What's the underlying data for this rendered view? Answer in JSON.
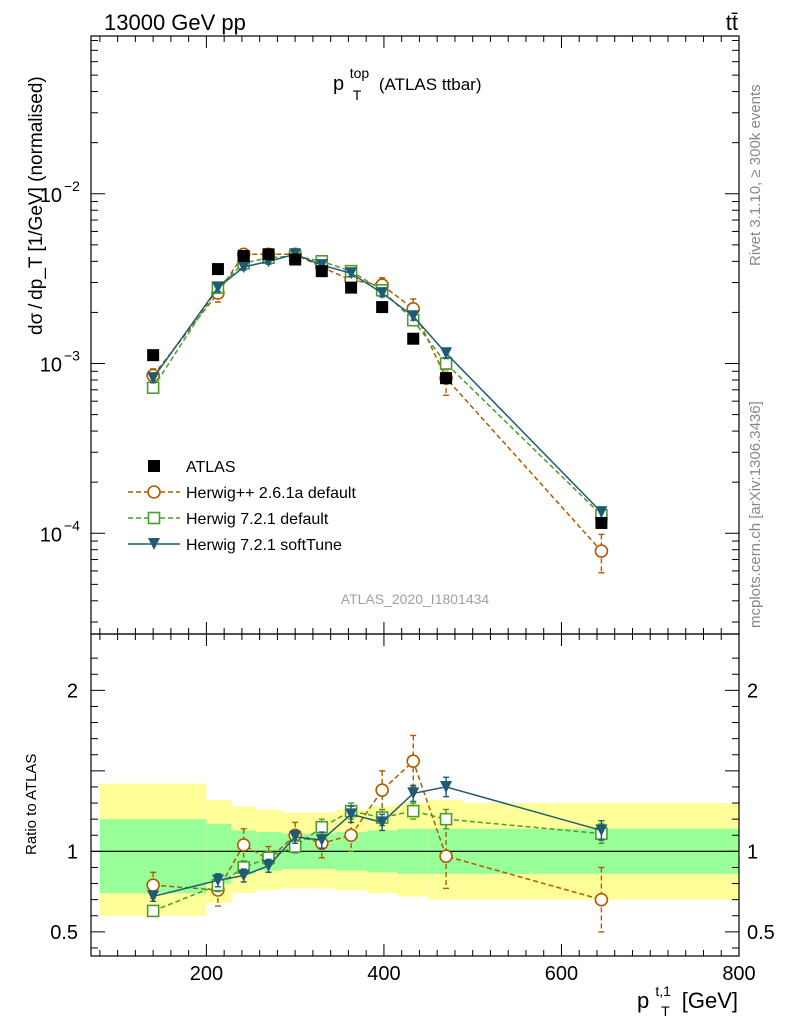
{
  "header": {
    "energy_label": "13000 GeV pp",
    "process_label": "tt̄"
  },
  "side_labels": {
    "rivet": "Rivet 3.1.10, ≥ 300k events",
    "mcplots": "mcplots.cern.ch [arXiv:1306.3436]"
  },
  "plot": {
    "title_main": "p",
    "title_sup": "top",
    "title_sub": "T",
    "title_suffix": " (ATLAS ttbar)",
    "analysis_id": "ATLAS_2020_I1801434",
    "ylabel": "dσ / dp_T [1/GeV] (normalised)",
    "ratio_ylabel": "Ratio to ATLAS",
    "xlabel_main": "p",
    "xlabel_sup": "t,1",
    "xlabel_sub": "T",
    "xlabel_unit": " [GeV]"
  },
  "chart_data": {
    "type": "line",
    "xlim": [
      70,
      800
    ],
    "ylim_main": [
      2.55e-05,
      0.085
    ],
    "ylim_ratio": [
      0.35,
      2.35
    ],
    "xticks": [
      {
        "v": 200,
        "label": "200"
      },
      {
        "v": 400,
        "label": "400"
      },
      {
        "v": 600,
        "label": "600"
      },
      {
        "v": 800,
        "label": "800"
      }
    ],
    "yticks_main": [
      {
        "v": 0.01,
        "label": "10",
        "exp": "−2"
      },
      {
        "v": 0.001,
        "label": "10",
        "exp": "−3"
      },
      {
        "v": 0.0001,
        "label": "10",
        "exp": "−4"
      }
    ],
    "yticks_ratio": [
      {
        "v": 0.5,
        "label": "0.5"
      },
      {
        "v": 1,
        "label": "1"
      },
      {
        "v": 2,
        "label": "2"
      }
    ],
    "x": [
      140,
      213,
      242,
      270,
      300,
      330,
      363,
      398,
      433,
      470,
      645
    ],
    "bins": [
      [
        80,
        200
      ],
      [
        200,
        228
      ],
      [
        228,
        256
      ],
      [
        256,
        285
      ],
      [
        285,
        315
      ],
      [
        315,
        345
      ],
      [
        345,
        381
      ],
      [
        381,
        415
      ],
      [
        415,
        450
      ],
      [
        450,
        490
      ],
      [
        490,
        800
      ]
    ],
    "band_green": [
      [
        0.74,
        1.2
      ],
      [
        0.8,
        1.17
      ],
      [
        0.86,
        1.13
      ],
      [
        0.88,
        1.12
      ],
      [
        0.89,
        1.11
      ],
      [
        0.89,
        1.11
      ],
      [
        0.88,
        1.12
      ],
      [
        0.87,
        1.13
      ],
      [
        0.86,
        1.14
      ],
      [
        0.86,
        1.14
      ],
      [
        0.86,
        1.14
      ]
    ],
    "band_yellow": [
      [
        0.6,
        1.42
      ],
      [
        0.68,
        1.32
      ],
      [
        0.74,
        1.28
      ],
      [
        0.76,
        1.26
      ],
      [
        0.77,
        1.24
      ],
      [
        0.77,
        1.24
      ],
      [
        0.76,
        1.26
      ],
      [
        0.74,
        1.28
      ],
      [
        0.72,
        1.3
      ],
      [
        0.7,
        1.32
      ],
      [
        0.7,
        1.3
      ]
    ],
    "series": [
      {
        "name": "ATLAS",
        "color": "#000000",
        "marker": "square-filled",
        "values": [
          0.00112,
          0.0036,
          0.0043,
          0.0044,
          0.0041,
          0.0035,
          0.0028,
          0.00215,
          0.0014,
          0.00082,
          0.000115
        ]
      },
      {
        "name": "Herwig++ 2.6.1a default",
        "color": "#b35900",
        "marker": "circle-open",
        "dash": "5,3",
        "values": [
          0.00085,
          0.0026,
          0.0044,
          0.0044,
          0.0044,
          0.0037,
          0.0031,
          0.0029,
          0.0021,
          0.00082,
          7.85e-05
        ],
        "errors": [
          8e-05,
          0.0003,
          0.00032,
          0.0003,
          0.0003,
          0.0003,
          0.0003,
          0.0003,
          0.0003,
          0.00017,
          2e-05
        ],
        "ratio": [
          0.79,
          0.76,
          1.04,
          0.95,
          1.1,
          1.05,
          1.1,
          1.38,
          1.56,
          0.97,
          0.7
        ],
        "ratio_errors": [
          0.08,
          0.1,
          0.1,
          0.08,
          0.08,
          0.09,
          0.1,
          0.12,
          0.16,
          0.2,
          0.2
        ]
      },
      {
        "name": "Herwig 7.2.1 default",
        "color": "#4a9c2f",
        "marker": "square-open",
        "dash": "5,3",
        "values": [
          0.00072,
          0.0028,
          0.0039,
          0.0042,
          0.0043,
          0.004,
          0.0035,
          0.0027,
          0.0018,
          0.001,
          0.000128
        ],
        "errors": [
          5e-05,
          0.00015,
          0.00015,
          0.00015,
          0.00015,
          0.00015,
          0.00015,
          0.00013,
          0.0001,
          8e-05,
          1e-05
        ],
        "ratio": [
          0.63,
          0.79,
          0.9,
          0.96,
          1.03,
          1.15,
          1.25,
          1.21,
          1.25,
          1.2,
          1.11
        ],
        "ratio_errors": [
          0.03,
          0.04,
          0.04,
          0.04,
          0.04,
          0.05,
          0.05,
          0.05,
          0.05,
          0.06,
          0.06
        ]
      },
      {
        "name": "Herwig 7.2.1 softTune",
        "color": "#1f5c73",
        "marker": "triangle-down-filled",
        "values": [
          0.00082,
          0.0028,
          0.0037,
          0.004,
          0.0044,
          0.0038,
          0.0034,
          0.0026,
          0.0019,
          0.00115,
          0.000133
        ],
        "errors": [
          5e-05,
          0.00015,
          0.00015,
          0.00015,
          0.00015,
          0.00015,
          0.00015,
          0.00013,
          0.0001,
          8e-05,
          1e-05
        ],
        "ratio": [
          0.72,
          0.82,
          0.85,
          0.91,
          1.09,
          1.07,
          1.23,
          1.18,
          1.36,
          1.4,
          1.13
        ],
        "ratio_errors": [
          0.03,
          0.04,
          0.04,
          0.04,
          0.04,
          0.05,
          0.05,
          0.05,
          0.05,
          0.06,
          0.06
        ]
      }
    ]
  }
}
